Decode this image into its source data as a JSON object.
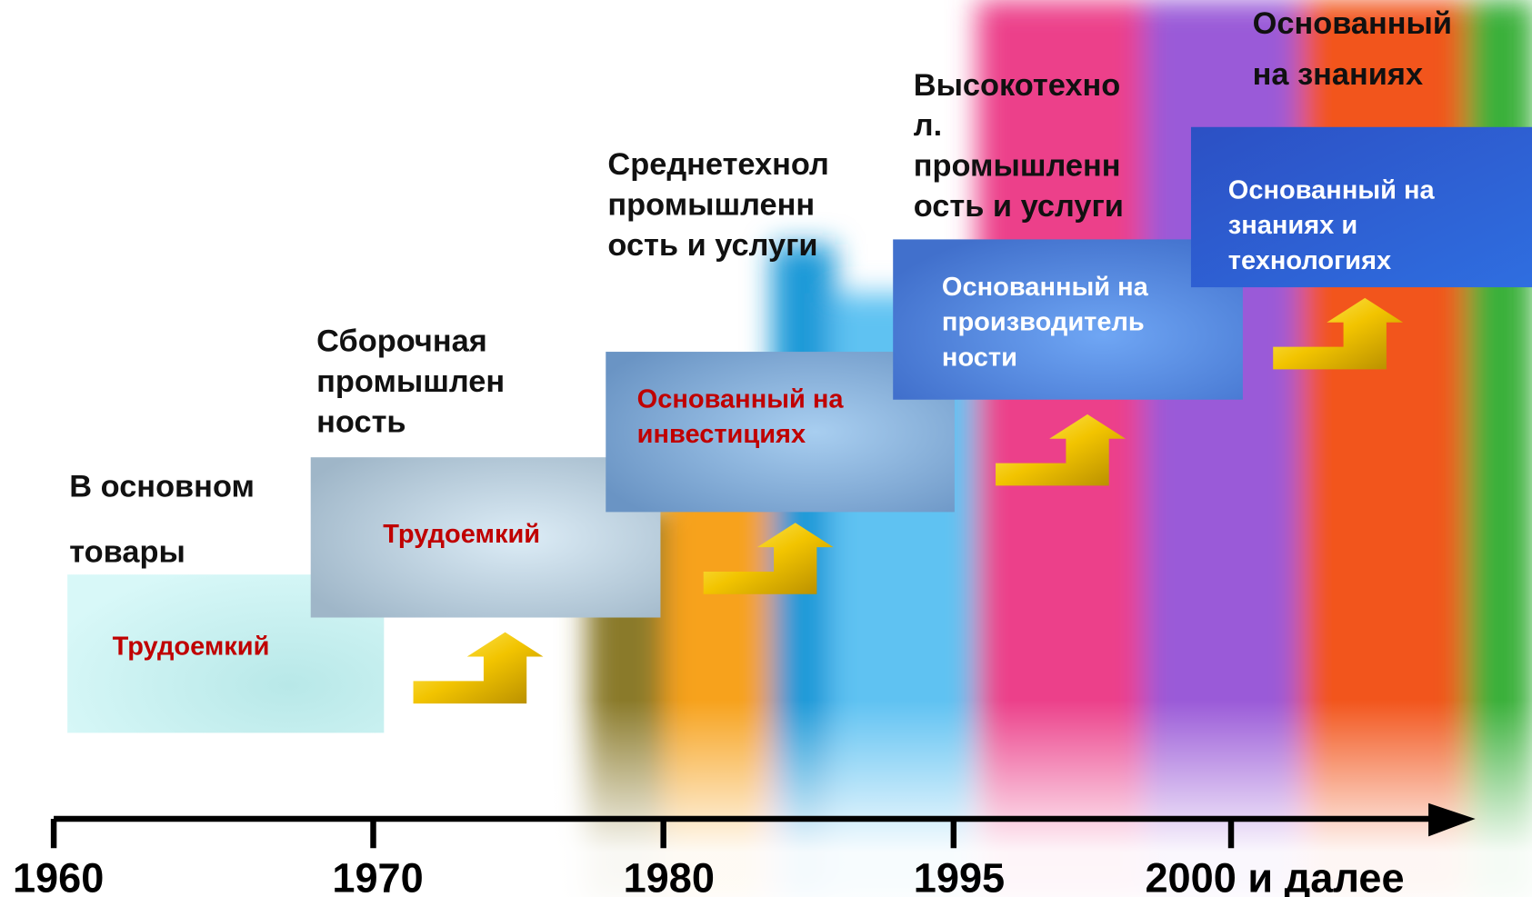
{
  "stages": [
    {
      "heading": [
        "В основном",
        "товары"
      ],
      "box": [
        "Трудоемкий"
      ]
    },
    {
      "heading": [
        "Сборочная",
        "промышлен",
        "ность"
      ],
      "box": [
        "Трудоемкий"
      ]
    },
    {
      "heading": [
        "Среднетехнол",
        "промышленн",
        "ость и услуги"
      ],
      "box": [
        "Основанный на",
        "инвестициях"
      ]
    },
    {
      "heading": [
        "Высокотехно",
        "л.",
        "промышленн",
        "ость и услуги"
      ],
      "box": [
        "Основанный на",
        "производитель",
        "ности"
      ]
    },
    {
      "heading": [
        "Основанный",
        "на знаниях"
      ],
      "box": [
        "Основанный на",
        "знаниях и",
        "технологиях"
      ]
    }
  ],
  "timeline": [
    "1960",
    "1970",
    "1980",
    "1995",
    "2000 и далее"
  ]
}
